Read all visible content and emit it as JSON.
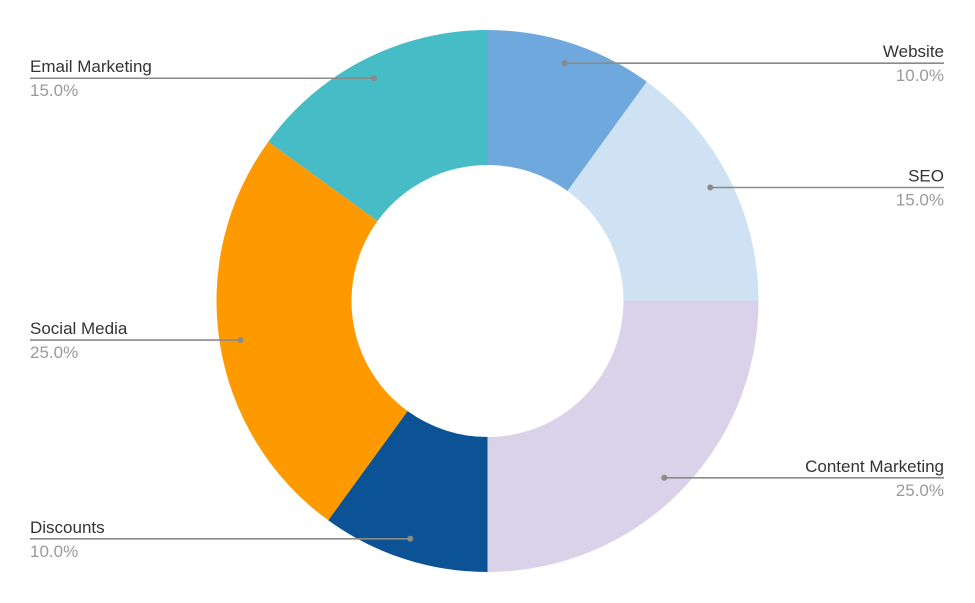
{
  "chart_data": {
    "type": "pie",
    "donut": true,
    "start_angle_deg": 0,
    "direction": "clockwise",
    "slices": [
      {
        "label": "Website",
        "percent_label": "10.0%",
        "value": 10.0,
        "color": "#6fa8dc",
        "side": "right"
      },
      {
        "label": "SEO",
        "percent_label": "15.0%",
        "value": 15.0,
        "color": "#cfe2f3",
        "side": "right"
      },
      {
        "label": "Content Marketing",
        "percent_label": "25.0%",
        "value": 25.0,
        "color": "#d9d2e9",
        "side": "right"
      },
      {
        "label": "Discounts",
        "percent_label": "10.0%",
        "value": 10.0,
        "color": "#0b5394",
        "side": "left"
      },
      {
        "label": "Social Media",
        "percent_label": "25.0%",
        "value": 25.0,
        "color": "#ff9900",
        "side": "left"
      },
      {
        "label": "Email Marketing",
        "percent_label": "15.0%",
        "value": 15.0,
        "color": "#45bcc6",
        "side": "left"
      }
    ]
  }
}
